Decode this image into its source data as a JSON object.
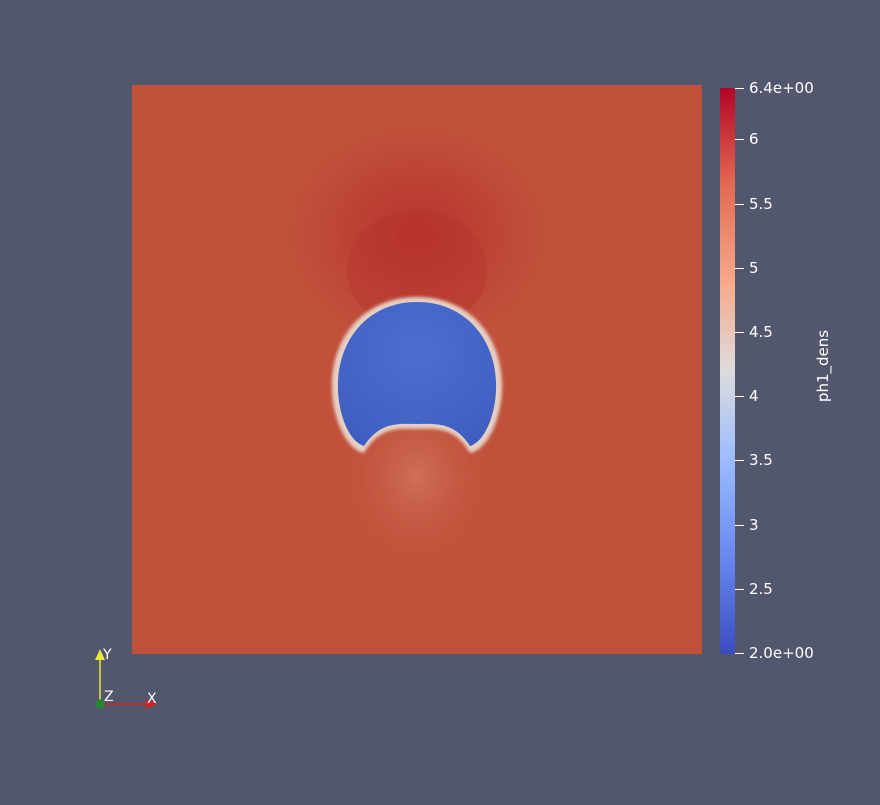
{
  "scalar_bar": {
    "title": "ph1_dens",
    "ticks": [
      {
        "label": "6.4e+00",
        "value": 6.4
      },
      {
        "label": "6",
        "value": 6.0
      },
      {
        "label": "5.5",
        "value": 5.5
      },
      {
        "label": "5",
        "value": 5.0
      },
      {
        "label": "4.5",
        "value": 4.5
      },
      {
        "label": "4",
        "value": 4.0
      },
      {
        "label": "3.5",
        "value": 3.5
      },
      {
        "label": "3",
        "value": 3.0
      },
      {
        "label": "2.5",
        "value": 2.5
      },
      {
        "label": "2.0e+00",
        "value": 2.0
      }
    ],
    "range": [
      2.0,
      6.4
    ],
    "colormap": [
      "#3b4cc0",
      "#7597f6",
      "#b9d0f9",
      "#dddcdc",
      "#f6b89c",
      "#e16a53",
      "#b40426"
    ]
  },
  "axes": {
    "x_label": "X",
    "y_label": "Y",
    "z_label": "Z",
    "x_color": "#d41f1f",
    "y_color": "#e8e83a",
    "z_color": "#1f8a2e"
  },
  "colors": {
    "background": "#52576e",
    "field": "#c1513b",
    "bubble": "#4666c6"
  }
}
